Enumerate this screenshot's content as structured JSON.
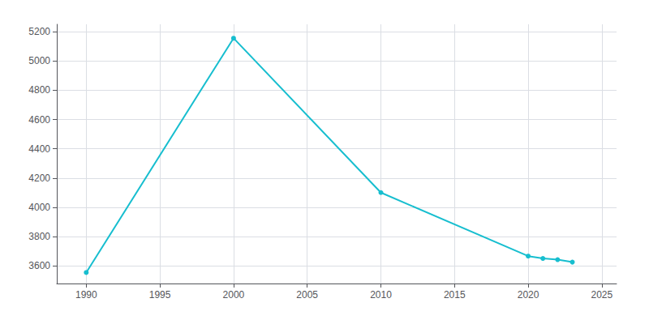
{
  "chart_data": {
    "type": "line",
    "x": [
      1990,
      2000,
      2010,
      2020,
      2021,
      2022,
      2023
    ],
    "values": [
      3555,
      5155,
      4101,
      3667,
      3651,
      3643,
      3626
    ],
    "color": "#17becf",
    "marker": "circle",
    "xlim": [
      1988,
      2026
    ],
    "ylim": [
      3480,
      5250
    ],
    "xticks": [
      1990,
      1995,
      2000,
      2005,
      2010,
      2015,
      2020,
      2025
    ],
    "yticks": [
      3600,
      3800,
      4000,
      4200,
      4400,
      4600,
      4800,
      5000,
      5200
    ],
    "grid": true
  }
}
